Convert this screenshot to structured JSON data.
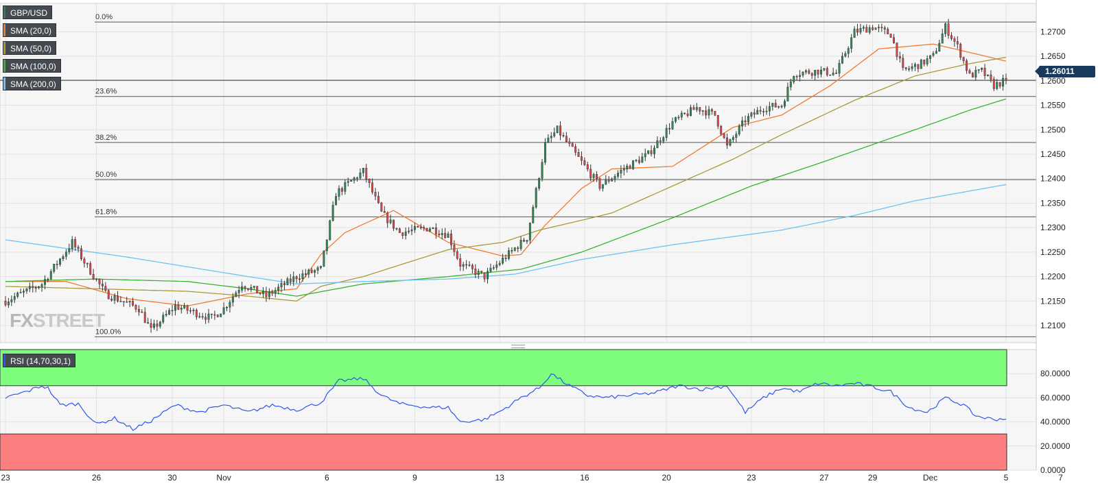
{
  "chart_data": [
    {
      "type": "candlestick",
      "title": "GBP/USD",
      "legend": [
        {
          "label": "GBP/USD",
          "color": "#2e7d5b"
        },
        {
          "label": "SMA (20,0)",
          "color": "#f07a2f"
        },
        {
          "label": "SMA (50,0)",
          "color": "#a89a3a"
        },
        {
          "label": "SMA (100,0)",
          "color": "#39b233"
        },
        {
          "label": "SMA (200,0)",
          "color": "#6ec1f2"
        }
      ],
      "last_price_label": "1.26011",
      "last_price": 1.2601,
      "y_ticks": [
        1.27,
        1.265,
        1.26,
        1.255,
        1.25,
        1.245,
        1.24,
        1.235,
        1.23,
        1.225,
        1.22,
        1.215,
        1.21
      ],
      "y_tick_labels": [
        "1.2700",
        "1.2650",
        "1.2600",
        "1.2550",
        "1.2500",
        "1.2450",
        "1.2400",
        "1.2350",
        "1.2300",
        "1.2250",
        "1.2200",
        "1.2150",
        "1.2100"
      ],
      "ylim": [
        1.2065,
        1.2758
      ],
      "x_labels": [
        "23",
        "26",
        "30",
        "Nov",
        "6",
        "9",
        "13",
        "16",
        "20",
        "23",
        "27",
        "29",
        "Dec",
        "5",
        "7"
      ],
      "fibonacci": {
        "levels": [
          {
            "label": "0.0%",
            "price": 1.272
          },
          {
            "label": "23.6%",
            "price": 1.2568
          },
          {
            "label": "38.2%",
            "price": 1.2474
          },
          {
            "label": "50.0%",
            "price": 1.2398
          },
          {
            "label": "61.8%",
            "price": 1.2322
          },
          {
            "label": "100.0%",
            "price": 1.2077
          }
        ],
        "current_price_line": 1.2601
      },
      "price_waypoints": [
        [
          0,
          1.215
        ],
        [
          12,
          1.2185
        ],
        [
          22,
          1.227
        ],
        [
          26,
          1.223
        ],
        [
          33,
          1.2165
        ],
        [
          44,
          1.2135
        ],
        [
          48,
          1.209
        ],
        [
          56,
          1.214
        ],
        [
          68,
          1.2115
        ],
        [
          72,
          1.2135
        ],
        [
          78,
          1.2185
        ],
        [
          86,
          1.216
        ],
        [
          96,
          1.22
        ],
        [
          104,
          1.2215
        ],
        [
          109,
          1.237
        ],
        [
          118,
          1.2415
        ],
        [
          124,
          1.233
        ],
        [
          130,
          1.229
        ],
        [
          140,
          1.23
        ],
        [
          146,
          1.2285
        ],
        [
          150,
          1.2225
        ],
        [
          158,
          1.22
        ],
        [
          164,
          1.2235
        ],
        [
          172,
          1.228
        ],
        [
          178,
          1.247
        ],
        [
          182,
          1.25
        ],
        [
          188,
          1.245
        ],
        [
          196,
          1.2385
        ],
        [
          204,
          1.242
        ],
        [
          212,
          1.245
        ],
        [
          220,
          1.2515
        ],
        [
          228,
          1.2545
        ],
        [
          234,
          1.253
        ],
        [
          238,
          1.2465
        ],
        [
          244,
          1.252
        ],
        [
          250,
          1.2545
        ],
        [
          256,
          1.255
        ],
        [
          260,
          1.2615
        ],
        [
          268,
          1.262
        ],
        [
          274,
          1.2615
        ],
        [
          280,
          1.27
        ],
        [
          286,
          1.271
        ],
        [
          292,
          1.2695
        ],
        [
          296,
          1.262
        ],
        [
          302,
          1.2635
        ],
        [
          306,
          1.265
        ],
        [
          310,
          1.271
        ],
        [
          314,
          1.267
        ],
        [
          318,
          1.261
        ],
        [
          322,
          1.262
        ],
        [
          326,
          1.259
        ],
        [
          330,
          1.2601
        ]
      ],
      "bars": 331,
      "sma_series": [
        {
          "name": "SMA (20,0)",
          "color": "#f07a2f",
          "points": [
            [
              0,
              1.219
            ],
            [
              20,
              1.219
            ],
            [
              40,
              1.2155
            ],
            [
              60,
              1.214
            ],
            [
              80,
              1.2165
            ],
            [
              96,
              1.2175
            ],
            [
              104,
              1.2245
            ],
            [
              112,
              1.229
            ],
            [
              128,
              1.2335
            ],
            [
              146,
              1.227
            ],
            [
              164,
              1.2242
            ],
            [
              170,
              1.2245
            ],
            [
              178,
              1.2305
            ],
            [
              190,
              1.238
            ],
            [
              200,
              1.242
            ],
            [
              220,
              1.2425
            ],
            [
              240,
              1.2505
            ],
            [
              256,
              1.253
            ],
            [
              272,
              1.259
            ],
            [
              288,
              1.2665
            ],
            [
              306,
              1.2675
            ],
            [
              320,
              1.2655
            ],
            [
              330,
              1.264
            ]
          ]
        },
        {
          "name": "SMA (50,0)",
          "color": "#a89a3a",
          "points": [
            [
              0,
              1.218
            ],
            [
              30,
              1.2175
            ],
            [
              60,
              1.217
            ],
            [
              80,
              1.216
            ],
            [
              96,
              1.215
            ],
            [
              104,
              1.218
            ],
            [
              118,
              1.22
            ],
            [
              146,
              1.2255
            ],
            [
              164,
              1.227
            ],
            [
              176,
              1.2295
            ],
            [
              190,
              1.2315
            ],
            [
              200,
              1.233
            ],
            [
              220,
              1.2385
            ],
            [
              240,
              1.244
            ],
            [
              256,
              1.249
            ],
            [
              280,
              1.256
            ],
            [
              300,
              1.261
            ],
            [
              318,
              1.2635
            ],
            [
              330,
              1.2648
            ]
          ]
        },
        {
          "name": "SMA (100,0)",
          "color": "#39b233",
          "points": [
            [
              0,
              1.219
            ],
            [
              30,
              1.2195
            ],
            [
              60,
              1.219
            ],
            [
              80,
              1.2175
            ],
            [
              96,
              1.216
            ],
            [
              118,
              1.2185
            ],
            [
              146,
              1.22
            ],
            [
              170,
              1.2215
            ],
            [
              190,
              1.225
            ],
            [
              220,
              1.232
            ],
            [
              246,
              1.2385
            ],
            [
              270,
              1.2435
            ],
            [
              300,
              1.25
            ],
            [
              318,
              1.254
            ],
            [
              330,
              1.2563
            ]
          ]
        },
        {
          "name": "SMA (200,0)",
          "color": "#6ec1f2",
          "points": [
            [
              0,
              1.2275
            ],
            [
              40,
              1.224
            ],
            [
              80,
              1.22
            ],
            [
              96,
              1.2185
            ],
            [
              118,
              1.219
            ],
            [
              146,
              1.2195
            ],
            [
              168,
              1.2205
            ],
            [
              190,
              1.2235
            ],
            [
              220,
              1.2265
            ],
            [
              256,
              1.2295
            ],
            [
              280,
              1.2325
            ],
            [
              300,
              1.2355
            ],
            [
              330,
              1.2388
            ]
          ]
        }
      ]
    },
    {
      "type": "line",
      "title": "RSI (14,70,30,1)",
      "color": "#2f55f0",
      "overbought": 70,
      "oversold": 30,
      "ylim": [
        0,
        100
      ],
      "y_ticks": [
        0,
        20,
        40,
        60,
        80
      ],
      "y_tick_labels": [
        "0.0000",
        "20.0000",
        "40.0000",
        "60.0000",
        "80.0000"
      ],
      "points": [
        [
          0,
          60
        ],
        [
          8,
          66
        ],
        [
          12,
          70
        ],
        [
          14,
          68
        ],
        [
          18,
          54
        ],
        [
          24,
          55
        ],
        [
          30,
          38
        ],
        [
          36,
          43
        ],
        [
          42,
          34
        ],
        [
          48,
          41
        ],
        [
          56,
          54
        ],
        [
          64,
          48
        ],
        [
          72,
          54
        ],
        [
          80,
          48
        ],
        [
          88,
          54
        ],
        [
          96,
          50
        ],
        [
          104,
          56
        ],
        [
          110,
          74
        ],
        [
          118,
          76
        ],
        [
          124,
          62
        ],
        [
          130,
          55
        ],
        [
          140,
          52
        ],
        [
          146,
          52
        ],
        [
          150,
          40
        ],
        [
          158,
          42
        ],
        [
          164,
          50
        ],
        [
          170,
          60
        ],
        [
          176,
          68
        ],
        [
          180,
          80
        ],
        [
          186,
          70
        ],
        [
          192,
          62
        ],
        [
          198,
          60
        ],
        [
          206,
          62
        ],
        [
          214,
          64
        ],
        [
          222,
          70
        ],
        [
          230,
          67
        ],
        [
          238,
          70
        ],
        [
          244,
          48
        ],
        [
          250,
          60
        ],
        [
          256,
          68
        ],
        [
          262,
          65
        ],
        [
          268,
          72
        ],
        [
          274,
          70
        ],
        [
          280,
          72
        ],
        [
          286,
          69
        ],
        [
          292,
          65
        ],
        [
          298,
          52
        ],
        [
          304,
          48
        ],
        [
          310,
          60
        ],
        [
          316,
          54
        ],
        [
          320,
          45
        ],
        [
          326,
          42
        ],
        [
          330,
          43
        ]
      ]
    }
  ]
}
